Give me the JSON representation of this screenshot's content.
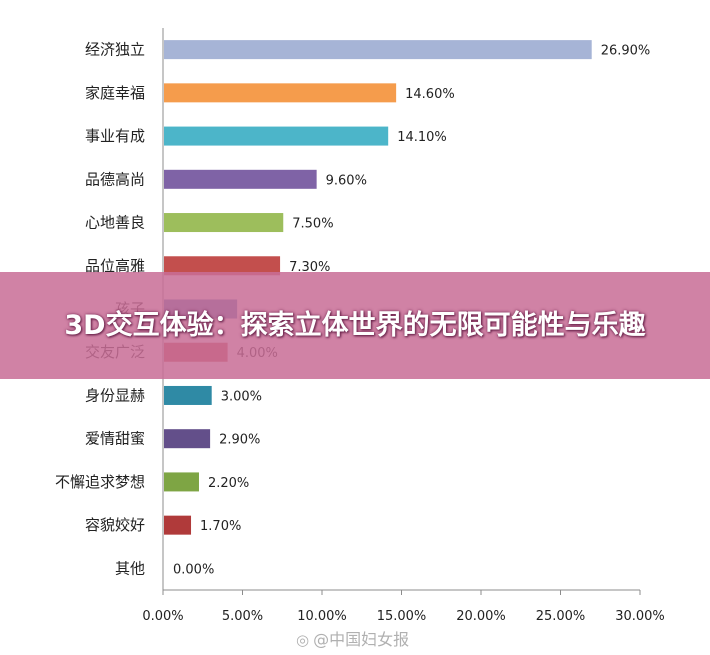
{
  "chart_data": {
    "type": "bar",
    "orientation": "horizontal",
    "categories": [
      "经济独立",
      "家庭幸福",
      "事业有成",
      "品德高尚",
      "心地善良",
      "品位高雅",
      "孩子",
      "交友广泛",
      "身份显赫",
      "爱情甜蜜",
      "不懈追求梦想",
      "容貌姣好",
      "其他"
    ],
    "values": [
      26.9,
      14.6,
      14.1,
      9.6,
      7.5,
      7.3,
      4.6,
      4.0,
      3.0,
      2.9,
      2.2,
      1.7,
      0.0
    ],
    "data_labels": [
      "26.90%",
      "14.60%",
      "14.10%",
      "9.60%",
      "7.50%",
      "7.30%",
      "",
      "4.00%",
      "3.00%",
      "2.90%",
      "2.20%",
      "1.70%",
      "0.00%"
    ],
    "colors": [
      "#a6b4d6",
      "#f59c4c",
      "#4cb5c9",
      "#7f63a6",
      "#9dbe5c",
      "#c34f4d",
      "#4a78b8",
      "#c34f4d",
      "#2f8aa5",
      "#634f8a",
      "#7ea544",
      "#b03a3a",
      "#888888"
    ],
    "x_ticks": [
      "0.00%",
      "5.00%",
      "10.00%",
      "15.00%",
      "20.00%",
      "25.00%",
      "30.00%"
    ],
    "xlim": [
      0,
      30
    ],
    "title": "",
    "xlabel": "",
    "ylabel": "",
    "grid": false,
    "legend": "none"
  },
  "banner": {
    "text": "3D交互体验：探索立体世界的无限可能性与乐趣"
  },
  "watermark": {
    "icon": "weibo-icon",
    "text": "@中国妇女报"
  }
}
